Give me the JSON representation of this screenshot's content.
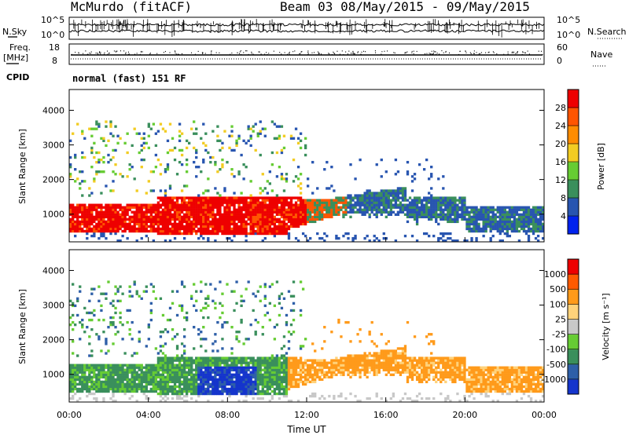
{
  "header": {
    "station": "McMurdo (fitACF)",
    "beam_info": "Beam 03 08/May/2015 - 09/May/2015"
  },
  "strip": {
    "nsky_label": "N.Sky",
    "nsky_ticks": [
      "10^5",
      "10^0"
    ],
    "nsearch_label": "N.Search",
    "nsearch_ticks": [
      "10^5",
      "10^0"
    ],
    "freq_label": "Freq.",
    "freq_unit": "[MHz]",
    "freq_ticks": [
      "18",
      "8"
    ],
    "nave_label": "Nave",
    "nave_ticks": [
      "60",
      "0"
    ],
    "cpid_label": "CPID",
    "cpid_text": "normal (fast) 151 RF"
  },
  "chart_data": [
    {
      "type": "heatmap",
      "name": "power-panel",
      "ylabel": "Slant Range [km]",
      "ylim": [
        200,
        4600
      ],
      "yticks": [
        "1000",
        "2000",
        "3000",
        "4000"
      ],
      "xlim": [
        0,
        24
      ],
      "colorbar_label": "Power [dB]",
      "colorbar_ticks": [
        "28",
        "24",
        "20",
        "16",
        "12",
        "8",
        "4"
      ],
      "colors": [
        "#0022ee",
        "#2855b0",
        "#3a8f5c",
        "#66cc33",
        "#f2cc22",
        "#ff8c00",
        "#ff5500",
        "#ee0000"
      ]
    },
    {
      "type": "heatmap",
      "name": "velocity-panel",
      "ylabel": "Slant Range [km]",
      "ylim": [
        200,
        4600
      ],
      "yticks": [
        "1000",
        "2000",
        "3000",
        "4000"
      ],
      "xlim": [
        0,
        24
      ],
      "xlabel": "Time UT",
      "xticks": [
        "00:00",
        "04:00",
        "08:00",
        "12:00",
        "16:00",
        "20:00",
        "00:00"
      ],
      "colorbar_label": "Velocity [m s⁻¹]",
      "colorbar_ticks": [
        "1000",
        "500",
        "100",
        "25",
        "-25",
        "-100",
        "-500",
        "-1000"
      ],
      "colors": [
        "#1535cc",
        "#2e5fa8",
        "#3a8f5c",
        "#66cc33",
        "#c8c8c8",
        "#ffd27a",
        "#ff9a1a",
        "#ff5a00",
        "#ee0000"
      ]
    }
  ]
}
